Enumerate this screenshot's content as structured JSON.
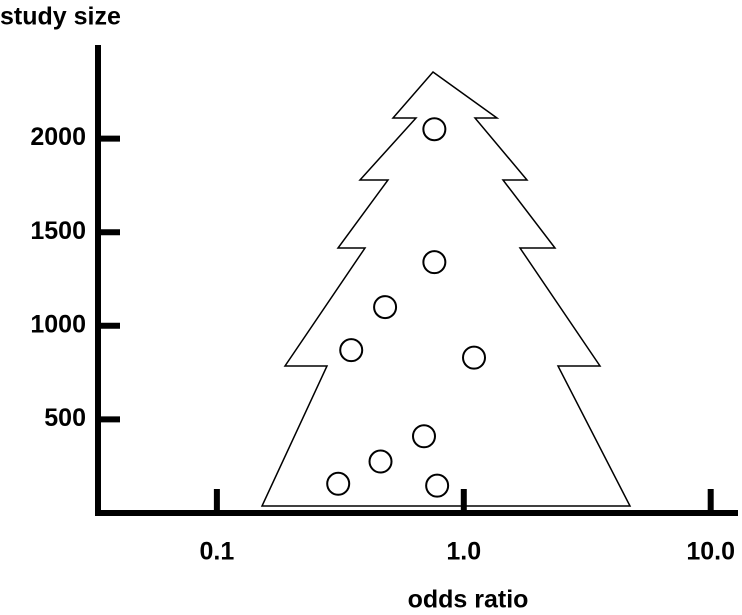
{
  "chart_data": {
    "type": "scatter",
    "x_label": "odds ratio",
    "y_label": "study size",
    "x": [
      0.76,
      0.76,
      0.48,
      0.35,
      1.1,
      0.69,
      0.46,
      0.31,
      0.78
    ],
    "values": [
      2050,
      1340,
      1100,
      870,
      830,
      410,
      275,
      156,
      146
    ],
    "xscale": "log",
    "xlim": [
      0.033,
      12.9
    ],
    "ylim": [
      0,
      2500
    ],
    "xticks": [
      0.1,
      {
        "value": 1,
        "label": "1.0"
      },
      {
        "value": 10,
        "label": "10.0"
      }
    ],
    "yticks": [
      500,
      1000,
      1500,
      2000
    ],
    "color": "#ffffff",
    "edge_color": "#000000",
    "grid": false
  }
}
